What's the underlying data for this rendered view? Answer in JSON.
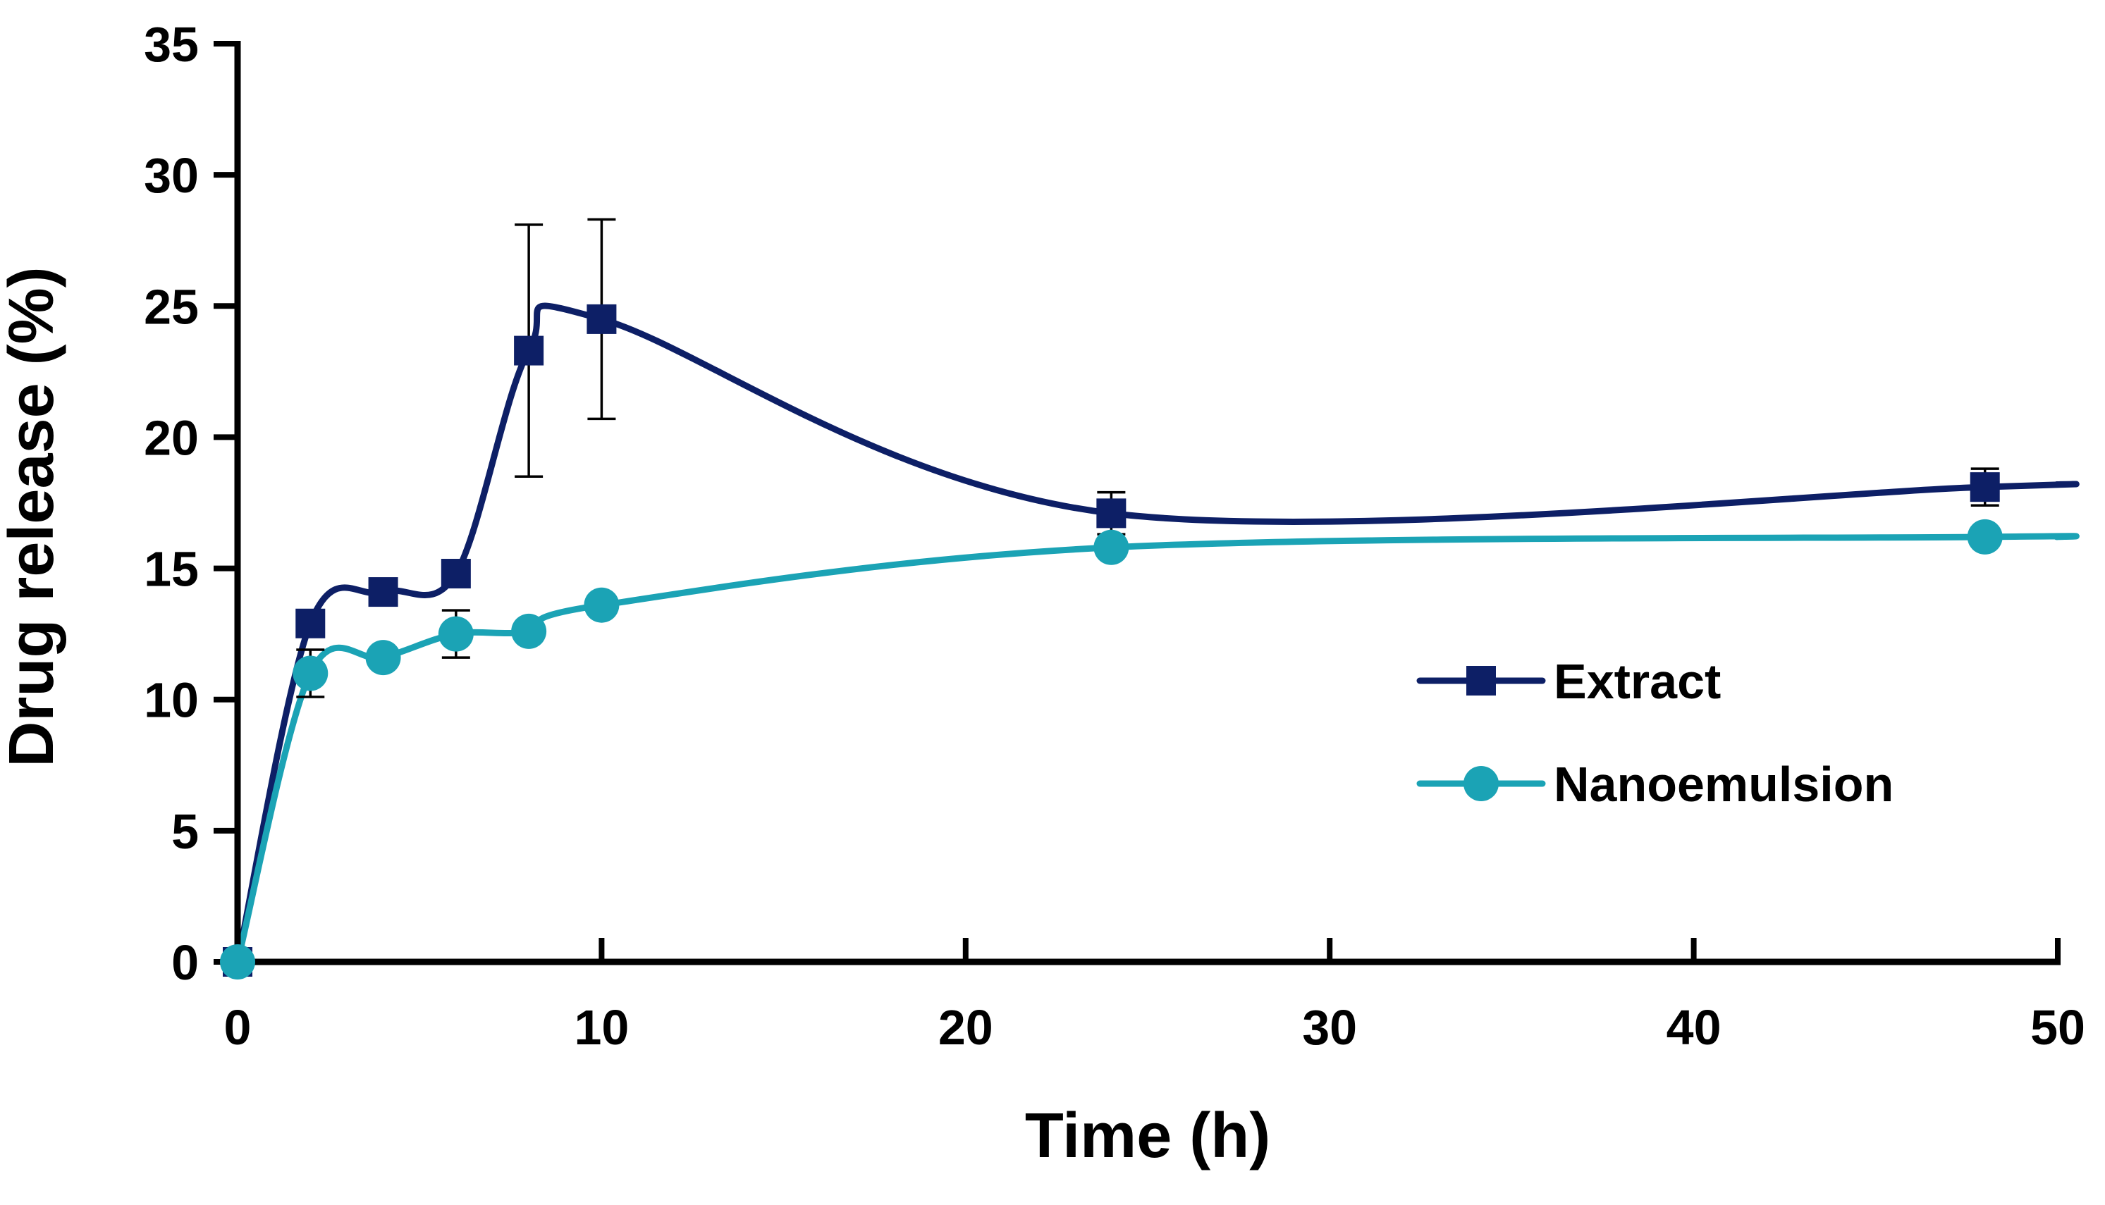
{
  "chart_data": {
    "type": "line",
    "title": "",
    "xlabel": "Time (h)",
    "ylabel": "Drug release (%)",
    "xlim": [
      0,
      50
    ],
    "ylim": [
      0,
      35
    ],
    "xticks": [
      0,
      10,
      20,
      30,
      40,
      50
    ],
    "yticks": [
      0,
      5,
      10,
      15,
      20,
      25,
      30,
      35
    ],
    "grid": false,
    "legend_position": "center-right",
    "series": [
      {
        "name": "Extract",
        "color": "#0d1f66",
        "marker": "square",
        "x": [
          0,
          2,
          4,
          6,
          8,
          10,
          24,
          48,
          50
        ],
        "y": [
          0,
          12.9,
          14.1,
          14.8,
          23.3,
          24.5,
          17.1,
          18.1,
          18.2
        ],
        "error": [
          0,
          0,
          0,
          0,
          4.8,
          3.8,
          0.8,
          0.7,
          null
        ],
        "marker_mask": [
          true,
          true,
          true,
          true,
          true,
          true,
          true,
          true,
          false
        ]
      },
      {
        "name": "Nanoemulsion",
        "color": "#1ba3b5",
        "marker": "circle",
        "x": [
          0,
          2,
          4,
          6,
          8,
          10,
          24,
          48,
          50
        ],
        "y": [
          0,
          11.0,
          11.6,
          12.5,
          12.6,
          13.6,
          15.8,
          16.2,
          16.2
        ],
        "error": [
          0,
          0.9,
          0,
          0.9,
          0,
          0,
          0,
          0,
          null
        ],
        "marker_mask": [
          true,
          true,
          true,
          true,
          true,
          true,
          true,
          true,
          false
        ]
      }
    ]
  }
}
